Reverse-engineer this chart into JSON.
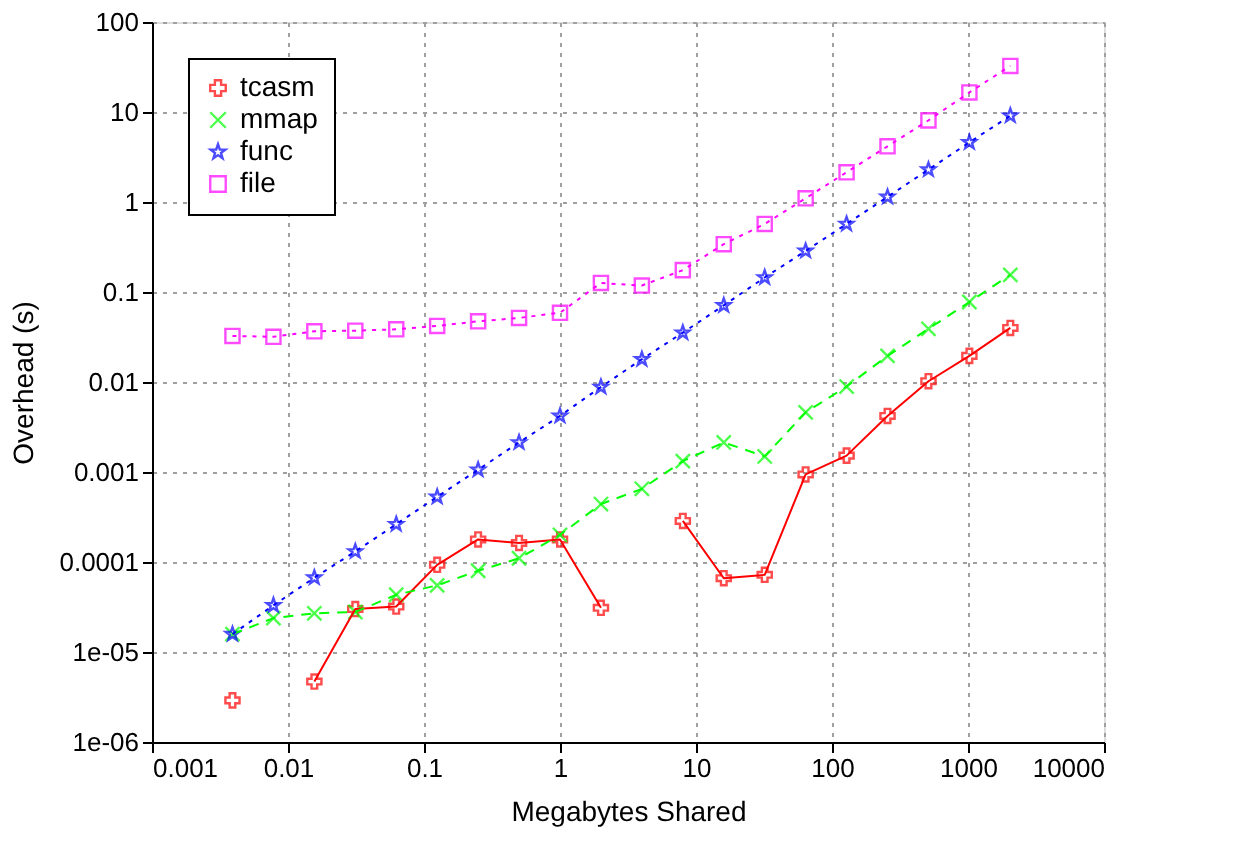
{
  "chart_data": {
    "type": "line",
    "xlabel": "Megabytes Shared",
    "ylabel": "Overhead (s)",
    "x": [
      0.00390625,
      0.0078125,
      0.015625,
      0.03125,
      0.0625,
      0.125,
      0.25,
      0.5,
      1,
      2,
      4,
      8,
      16,
      32,
      64,
      128,
      256,
      512,
      1024,
      2048
    ],
    "series": [
      {
        "name": "tcasm",
        "color": "#ff0000",
        "marker": "cross",
        "line_style": "solid",
        "values": [
          2.9e-06,
          null,
          4.7e-06,
          3e-05,
          3.2e-05,
          9.3e-05,
          0.000178,
          0.000163,
          0.000178,
          3.1e-05,
          null,
          0.000286,
          6.6e-05,
          7.2e-05,
          0.00094,
          0.00152,
          0.0042,
          0.0102,
          0.0195,
          0.0399
        ]
      },
      {
        "name": "mmap",
        "color": "#00ff00",
        "marker": "x",
        "line_style": "dashed",
        "values": [
          1.58e-05,
          2.38e-05,
          2.69e-05,
          2.78e-05,
          4.33e-05,
          5.5e-05,
          8e-05,
          0.00011,
          0.0002,
          0.00044,
          0.00065,
          0.00132,
          0.00213,
          0.00149,
          0.0046,
          0.0089,
          0.0195,
          0.039,
          0.0775,
          0.155
        ]
      },
      {
        "name": "func",
        "color": "#0000ff",
        "marker": "star",
        "line_style": "dotted",
        "values": [
          1.58e-05,
          3.3e-05,
          6.7e-05,
          0.000131,
          0.000263,
          0.00053,
          0.00106,
          0.00213,
          0.0042,
          0.0088,
          0.0179,
          0.0353,
          0.071,
          0.145,
          0.286,
          0.57,
          1.14,
          2.29,
          4.6,
          9.1
        ]
      },
      {
        "name": "file",
        "color": "#ff00ff",
        "marker": "square",
        "line_style": "dotted",
        "values": [
          0.0325,
          0.0318,
          0.0366,
          0.0372,
          0.0385,
          0.042,
          0.0472,
          0.0515,
          0.0588,
          0.126,
          0.118,
          0.175,
          0.34,
          0.57,
          1.1,
          2.14,
          4.16,
          8.07,
          16.5,
          32.5
        ]
      }
    ],
    "log": "xy",
    "xlim": [
      0.001,
      10000
    ],
    "xticks": [
      0.001,
      0.01,
      0.1,
      1,
      10,
      100,
      1000,
      10000
    ],
    "ylim": [
      1e-06,
      100
    ],
    "yticks": [
      {
        "value": 1e-06,
        "label": "1e-06"
      },
      {
        "value": 1e-05,
        "label": "1e-05"
      },
      0.0001,
      0.001,
      0.01,
      0.1,
      1,
      10,
      100
    ],
    "grid": true,
    "legend": "top left"
  }
}
